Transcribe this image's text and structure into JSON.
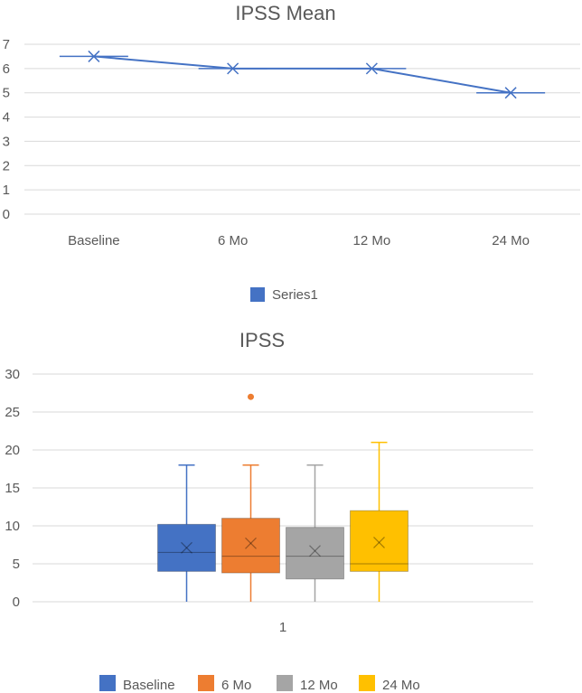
{
  "chart_data": [
    {
      "type": "line",
      "title": "IPSS Mean",
      "categories": [
        "Baseline",
        "6 Mo",
        "12 Mo",
        "24 Mo"
      ],
      "series": [
        {
          "name": "Series1",
          "values": [
            6.5,
            6,
            6,
            5
          ],
          "color": "#4472c4",
          "marker": "x"
        }
      ],
      "ylim": [
        0,
        7
      ],
      "yticks": [
        0,
        1,
        2,
        3,
        4,
        5,
        6,
        7
      ],
      "grid": true,
      "legend": "bottom-center"
    },
    {
      "type": "box",
      "title": "IPSS",
      "categories": [
        "1"
      ],
      "ylim": [
        0,
        30
      ],
      "yticks": [
        0,
        5,
        10,
        15,
        20,
        25,
        30
      ],
      "grid": true,
      "legend": "bottom-center",
      "series": [
        {
          "name": "Baseline",
          "color": "#4472c4",
          "min": 0,
          "q1": 4,
          "median": 6.5,
          "q3": 10.2,
          "max": 18,
          "mean": 7.1,
          "outliers": []
        },
        {
          "name": "6 Mo",
          "color": "#ed7d31",
          "min": 0,
          "q1": 3.8,
          "median": 6,
          "q3": 11,
          "max": 18,
          "mean": 7.7,
          "outliers": [
            27
          ]
        },
        {
          "name": "12 Mo",
          "color": "#a5a5a5",
          "min": 0,
          "q1": 3,
          "median": 6,
          "q3": 9.8,
          "max": 18,
          "mean": 6.7,
          "outliers": []
        },
        {
          "name": "24 Mo",
          "color": "#ffc000",
          "min": 0,
          "q1": 4,
          "median": 5,
          "q3": 12,
          "max": 21,
          "mean": 7.8,
          "outliers": []
        }
      ]
    }
  ]
}
